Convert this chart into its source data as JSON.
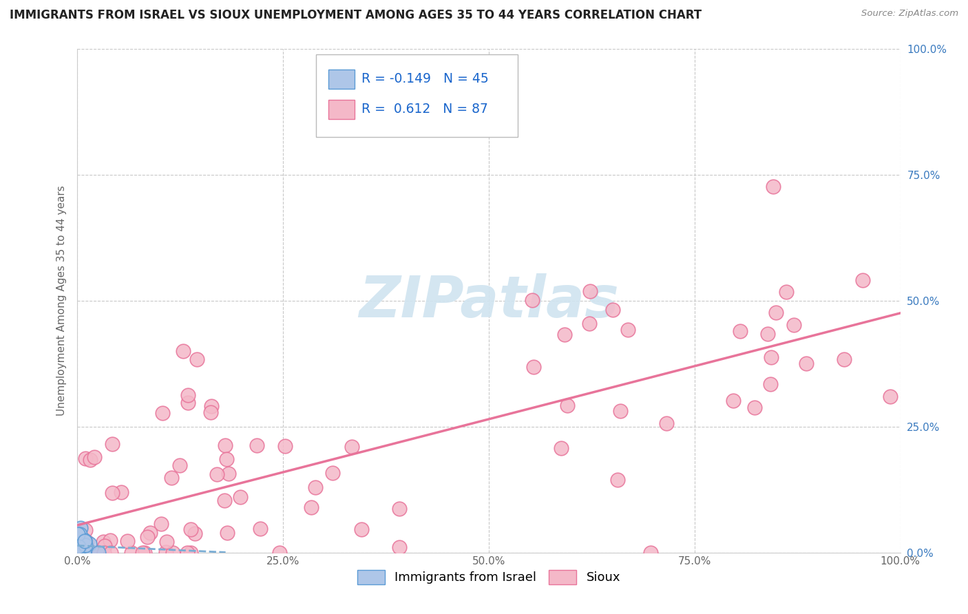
{
  "title": "IMMIGRANTS FROM ISRAEL VS SIOUX UNEMPLOYMENT AMONG AGES 35 TO 44 YEARS CORRELATION CHART",
  "source": "Source: ZipAtlas.com",
  "ylabel": "Unemployment Among Ages 35 to 44 years",
  "xlim": [
    0.0,
    1.0
  ],
  "ylim": [
    0.0,
    1.0
  ],
  "xticks": [
    0.0,
    0.25,
    0.5,
    0.75,
    1.0
  ],
  "xticklabels": [
    "0.0%",
    "25.0%",
    "50.0%",
    "75.0%",
    "100.0%"
  ],
  "yticks": [
    0.0,
    0.25,
    0.5,
    0.75,
    1.0
  ],
  "yticklabels_right": [
    "0.0%",
    "25.0%",
    "50.0%",
    "75.0%",
    "100.0%"
  ],
  "series1_name": "Immigrants from Israel",
  "series1_color": "#aec6e8",
  "series1_edge_color": "#5b9bd5",
  "series1_R": -0.149,
  "series1_N": 45,
  "series2_name": "Sioux",
  "series2_color": "#f4b8c8",
  "series2_edge_color": "#e8749a",
  "series2_R": 0.612,
  "series2_N": 87,
  "background_color": "#ffffff",
  "grid_color": "#c8c8c8",
  "trend1_color": "#7aadd4",
  "trend2_color": "#e8749a",
  "title_fontsize": 12,
  "axis_label_fontsize": 11,
  "tick_fontsize": 11,
  "legend_fontsize": 13,
  "watermark_color": "#d0e4f0"
}
